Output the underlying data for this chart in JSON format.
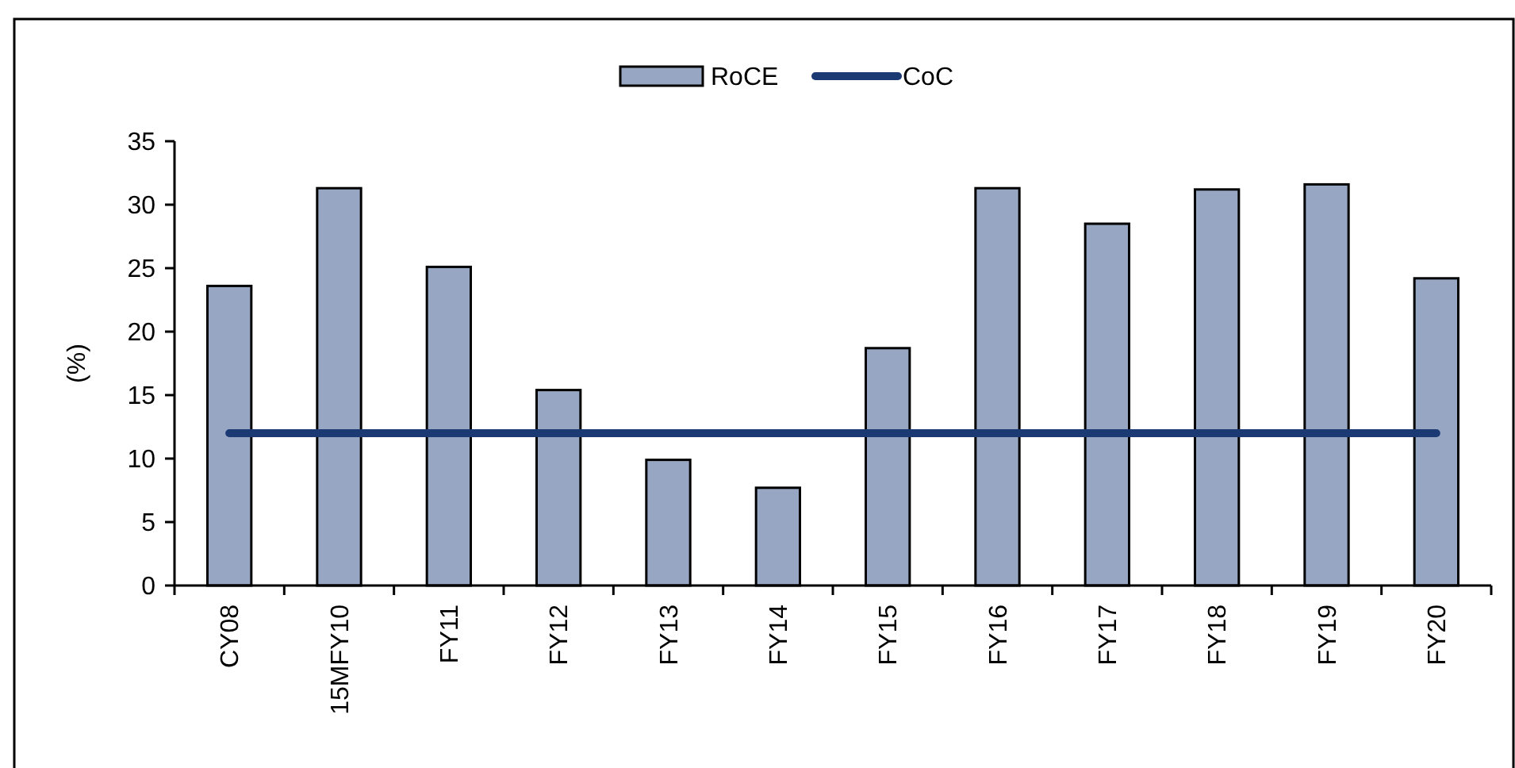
{
  "chart_data": {
    "type": "bar",
    "ylabel": "(%)",
    "categories": [
      "CY08",
      "15MFY10",
      "FY11",
      "FY12",
      "FY13",
      "FY14",
      "FY15",
      "FY16",
      "FY17",
      "FY18",
      "FY19",
      "FY20"
    ],
    "series": [
      {
        "name": "RoCE",
        "color": "#97a6c2",
        "values": [
          23.6,
          31.3,
          25.1,
          15.4,
          9.9,
          7.7,
          18.7,
          31.3,
          28.5,
          31.2,
          31.6,
          24.2
        ]
      },
      {
        "name": "CoC",
        "type": "line",
        "color": "#1b3a73",
        "values": [
          12,
          12,
          12,
          12,
          12,
          12,
          12,
          12,
          12,
          12,
          12,
          12
        ]
      }
    ],
    "ylim": [
      0,
      35
    ],
    "yticks": [
      0,
      5,
      10,
      15,
      20,
      25,
      30,
      35
    ],
    "grid": false,
    "legend": "top",
    "marker": "none"
  }
}
